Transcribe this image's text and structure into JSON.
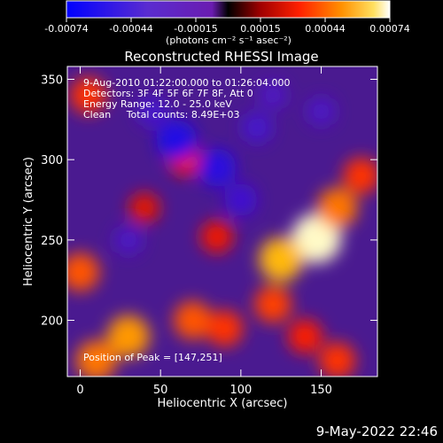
{
  "chart_data": {
    "type": "heatmap",
    "title": "Reconstructed RHESSI Image",
    "xlabel": "Heliocentric X (arcsec)",
    "ylabel": "Heliocentric Y (arcsec)",
    "xlim": [
      -8,
      185
    ],
    "ylim": [
      165,
      358
    ],
    "x_ticks": [
      0,
      50,
      100,
      150
    ],
    "y_ticks": [
      200,
      250,
      300,
      350
    ],
    "colorbar": {
      "ticks": [
        "-0.00074",
        "-0.00044",
        "-0.00015",
        "0.00015",
        "0.00044",
        "0.00074"
      ],
      "range": [
        -0.00074,
        0.00074
      ],
      "label": "(photons cm⁻² s⁻¹ asec⁻²)"
    },
    "annotations": [
      "9-Aug-2010 01:22:00.000 to 01:26:04.000",
      "Detectors: 3F 4F 5F 6F 7F 8F, Att 0",
      "Energy Range: 12.0 - 25.0 keV",
      "Clean     Total counts: 8.49E+03"
    ],
    "peak_label": "Position of Peak = [147,251]",
    "features": [
      {
        "x": 147,
        "y": 251,
        "value": 0.00074
      },
      {
        "x": 125,
        "y": 238,
        "value": 0.0006
      },
      {
        "x": 160,
        "y": 270,
        "value": 0.0005
      },
      {
        "x": 30,
        "y": 190,
        "value": 0.00055
      },
      {
        "x": 10,
        "y": 175,
        "value": 0.0005
      },
      {
        "x": 0,
        "y": 230,
        "value": 0.00045
      },
      {
        "x": 5,
        "y": 340,
        "value": 0.0004
      },
      {
        "x": 70,
        "y": 200,
        "value": 0.00045
      },
      {
        "x": 90,
        "y": 195,
        "value": 0.0004
      },
      {
        "x": 175,
        "y": 290,
        "value": 0.0004
      },
      {
        "x": 120,
        "y": 210,
        "value": 0.00042
      },
      {
        "x": 140,
        "y": 190,
        "value": 0.00035
      },
      {
        "x": 65,
        "y": 300,
        "value": 0.0003
      },
      {
        "x": 85,
        "y": 252,
        "value": 0.0003
      },
      {
        "x": 40,
        "y": 270,
        "value": 0.00025
      },
      {
        "x": 160,
        "y": 175,
        "value": 0.0004
      },
      {
        "x": 60,
        "y": 312,
        "value": -0.0005
      },
      {
        "x": 85,
        "y": 295,
        "value": -0.00045
      },
      {
        "x": 100,
        "y": 275,
        "value": -0.0003
      },
      {
        "x": 110,
        "y": 320,
        "value": -0.00025
      },
      {
        "x": 45,
        "y": 330,
        "value": -0.00025
      },
      {
        "x": 30,
        "y": 250,
        "value": -0.0002
      },
      {
        "x": 150,
        "y": 330,
        "value": -0.0002
      },
      {
        "x": 120,
        "y": 340,
        "value": -0.00018
      }
    ]
  },
  "footer": {
    "date": "9-May-2022 22:46"
  }
}
